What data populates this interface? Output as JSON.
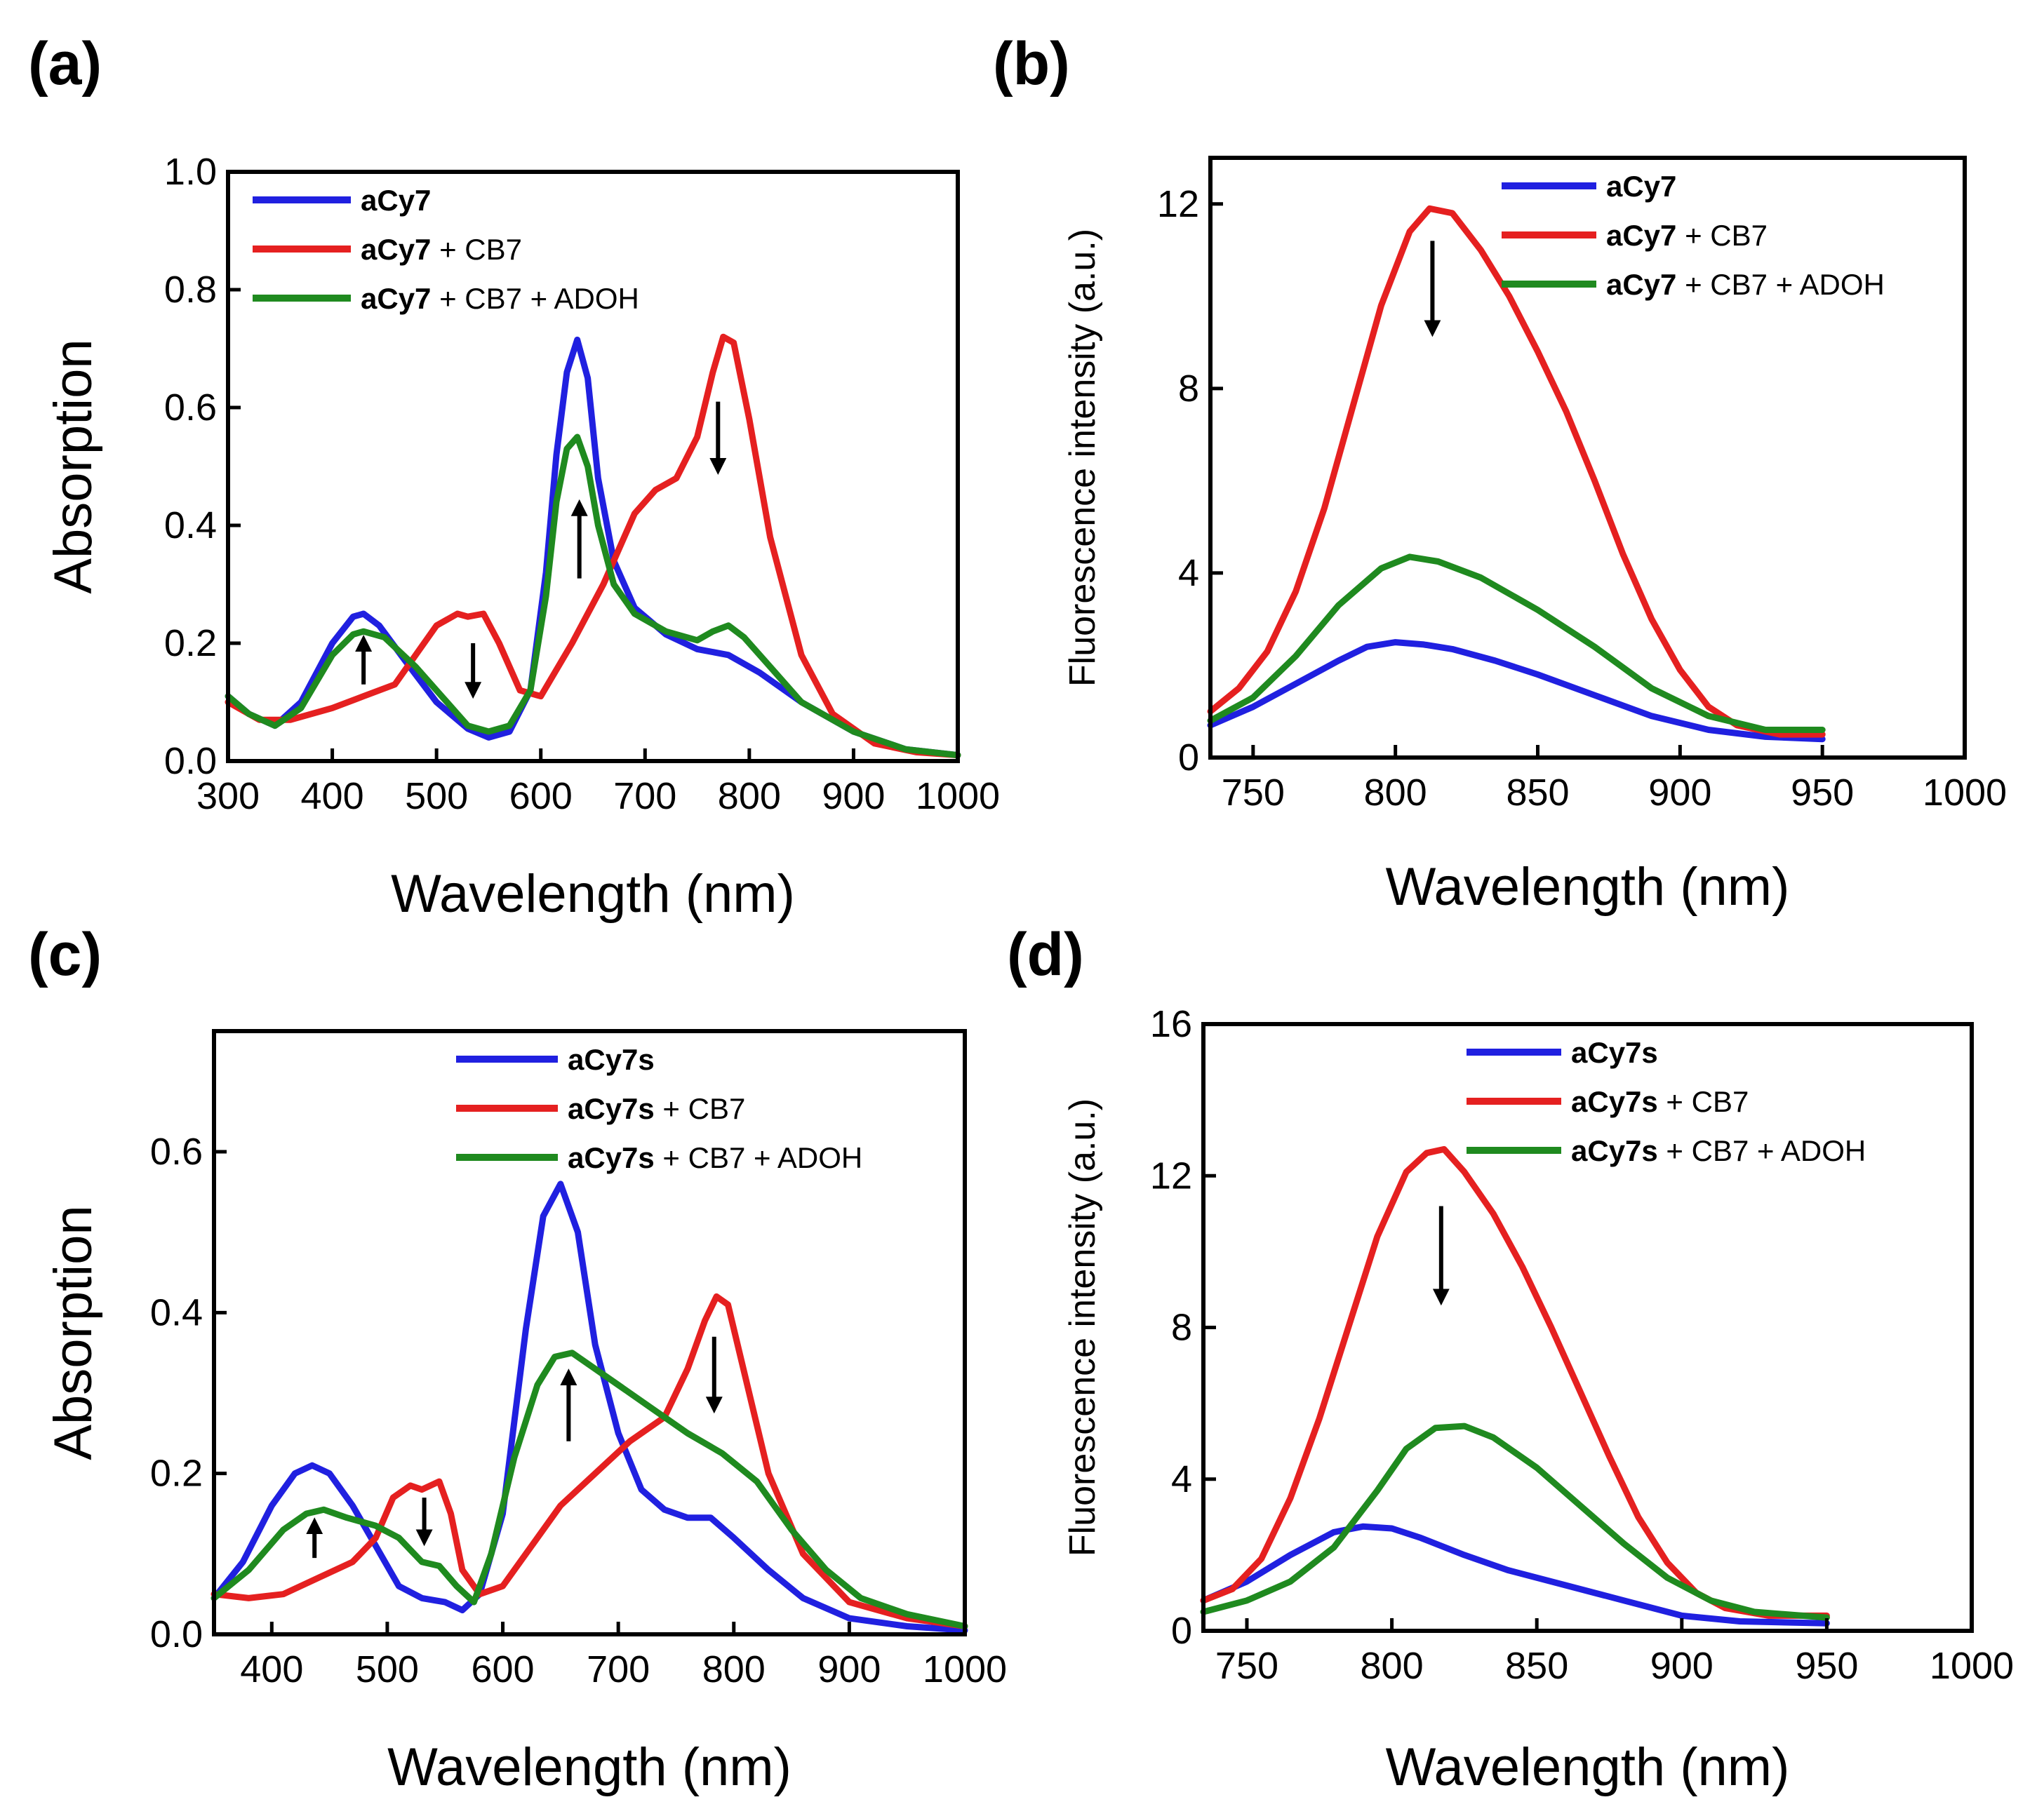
{
  "chart_data": [
    {
      "panel_label": "(a)",
      "type": "line",
      "xlabel": "Wavelength (nm)",
      "ylabel": "Absorption",
      "xlim": [
        300,
        1000
      ],
      "ylim": [
        0,
        1.0
      ],
      "xticks": [
        300,
        400,
        500,
        600,
        700,
        800,
        900,
        1000
      ],
      "yticks": [
        0.0,
        0.2,
        0.4,
        0.6,
        0.8,
        1.0
      ],
      "ytick_labels": [
        "0.0",
        "0.2",
        "0.4",
        "0.6",
        "0.8",
        "1.0"
      ],
      "legend_position": "top-left",
      "series": [
        {
          "name": "aCy7",
          "name_bold": "aCy7",
          "name_rest": "",
          "color": "#2020e0",
          "x": [
            300,
            320,
            345,
            370,
            400,
            420,
            430,
            445,
            470,
            500,
            530,
            550,
            570,
            590,
            605,
            615,
            625,
            635,
            645,
            655,
            670,
            690,
            720,
            750,
            780,
            810,
            850,
            900,
            950,
            1000
          ],
          "y": [
            0.11,
            0.08,
            0.06,
            0.1,
            0.2,
            0.245,
            0.25,
            0.23,
            0.17,
            0.1,
            0.055,
            0.04,
            0.05,
            0.12,
            0.32,
            0.52,
            0.66,
            0.715,
            0.65,
            0.48,
            0.34,
            0.26,
            0.215,
            0.19,
            0.18,
            0.15,
            0.1,
            0.05,
            0.02,
            0.01
          ]
        },
        {
          "name": "aCy7 + CB7",
          "name_bold": "aCy7",
          "name_rest": " + CB7",
          "color": "#e52020",
          "x": [
            300,
            330,
            360,
            400,
            430,
            460,
            480,
            500,
            520,
            530,
            545,
            560,
            580,
            600,
            630,
            660,
            690,
            710,
            730,
            750,
            765,
            775,
            785,
            800,
            820,
            850,
            880,
            920,
            960,
            1000
          ],
          "y": [
            0.1,
            0.07,
            0.07,
            0.09,
            0.11,
            0.13,
            0.18,
            0.23,
            0.25,
            0.245,
            0.25,
            0.2,
            0.12,
            0.11,
            0.2,
            0.3,
            0.42,
            0.46,
            0.48,
            0.55,
            0.66,
            0.72,
            0.71,
            0.58,
            0.38,
            0.18,
            0.08,
            0.03,
            0.015,
            0.01
          ]
        },
        {
          "name": "aCy7 + CB7 + ADOH",
          "name_bold": "aCy7",
          "name_rest": " + CB7 + ADOH",
          "color": "#1f8a1f",
          "x": [
            300,
            320,
            345,
            370,
            400,
            420,
            430,
            450,
            480,
            510,
            530,
            550,
            570,
            590,
            605,
            615,
            625,
            635,
            645,
            655,
            670,
            690,
            720,
            750,
            765,
            780,
            795,
            820,
            850,
            900,
            950,
            1000
          ],
          "y": [
            0.11,
            0.08,
            0.06,
            0.09,
            0.18,
            0.215,
            0.22,
            0.21,
            0.16,
            0.1,
            0.06,
            0.05,
            0.06,
            0.12,
            0.28,
            0.44,
            0.53,
            0.55,
            0.5,
            0.4,
            0.3,
            0.25,
            0.22,
            0.205,
            0.22,
            0.23,
            0.21,
            0.16,
            0.1,
            0.05,
            0.02,
            0.01
          ]
        }
      ],
      "arrows": [
        {
          "x": 430,
          "y_from": 0.13,
          "y_to": 0.2,
          "direction": "up"
        },
        {
          "x": 535,
          "y_from": 0.2,
          "y_to": 0.12,
          "direction": "down"
        },
        {
          "x": 637,
          "y_from": 0.31,
          "y_to": 0.43,
          "direction": "up"
        },
        {
          "x": 770,
          "y_from": 0.61,
          "y_to": 0.5,
          "direction": "down"
        }
      ]
    },
    {
      "panel_label": "(b)",
      "type": "line",
      "xlabel": "Wavelength (nm)",
      "ylabel": "Fluorescence intensity (a.u.)",
      "xlim": [
        735,
        1000
      ],
      "ylim": [
        0,
        13
      ],
      "xticks": [
        750,
        800,
        850,
        900,
        950,
        1000
      ],
      "yticks": [
        0,
        4,
        8,
        12
      ],
      "ytick_labels": [
        "0",
        "4",
        "8",
        "12"
      ],
      "legend_position": "top-right",
      "series": [
        {
          "name": "aCy7",
          "name_bold": "aCy7",
          "name_rest": "",
          "color": "#2020e0",
          "x": [
            735,
            750,
            765,
            780,
            790,
            800,
            810,
            820,
            835,
            850,
            870,
            890,
            910,
            930,
            950
          ],
          "y": [
            0.7,
            1.1,
            1.6,
            2.1,
            2.4,
            2.5,
            2.45,
            2.35,
            2.1,
            1.8,
            1.35,
            0.9,
            0.6,
            0.45,
            0.4
          ]
        },
        {
          "name": "aCy7 + CB7",
          "name_bold": "aCy7",
          "name_rest": " + CB7",
          "color": "#e52020",
          "x": [
            735,
            745,
            755,
            765,
            775,
            785,
            795,
            805,
            812,
            820,
            830,
            840,
            850,
            860,
            870,
            880,
            890,
            900,
            910,
            920,
            935,
            950
          ],
          "y": [
            1.0,
            1.5,
            2.3,
            3.6,
            5.4,
            7.6,
            9.8,
            11.4,
            11.9,
            11.8,
            11.0,
            10.0,
            8.8,
            7.5,
            6.0,
            4.4,
            3.0,
            1.9,
            1.1,
            0.7,
            0.5,
            0.5
          ]
        },
        {
          "name": "aCy7 + CB7 + ADOH",
          "name_bold": "aCy7",
          "name_rest": " + CB7 + ADOH",
          "color": "#1f8a1f",
          "x": [
            735,
            750,
            765,
            780,
            795,
            805,
            815,
            830,
            850,
            870,
            890,
            910,
            930,
            950
          ],
          "y": [
            0.8,
            1.3,
            2.2,
            3.3,
            4.1,
            4.35,
            4.25,
            3.9,
            3.2,
            2.4,
            1.5,
            0.9,
            0.6,
            0.6
          ]
        }
      ],
      "arrows": [
        {
          "x": 813,
          "y_from": 11.2,
          "y_to": 9.3,
          "direction": "down"
        }
      ]
    },
    {
      "panel_label": "(c)",
      "type": "line",
      "xlabel": "Wavelength (nm)",
      "ylabel": "Absorption",
      "xlim": [
        350,
        1000
      ],
      "ylim": [
        0,
        0.75
      ],
      "xticks": [
        400,
        500,
        600,
        700,
        800,
        900,
        1000
      ],
      "yticks": [
        0.0,
        0.2,
        0.4,
        0.6
      ],
      "ytick_labels": [
        "0.0",
        "0.2",
        "0.4",
        "0.6"
      ],
      "legend_position": "top-center",
      "series": [
        {
          "name": "aCy7s",
          "name_bold": "aCy7s",
          "name_rest": "",
          "color": "#2020e0",
          "x": [
            350,
            375,
            400,
            420,
            435,
            450,
            470,
            490,
            510,
            530,
            550,
            565,
            580,
            600,
            620,
            635,
            650,
            665,
            680,
            700,
            720,
            740,
            760,
            780,
            800,
            830,
            860,
            900,
            950,
            1000
          ],
          "y": [
            0.045,
            0.09,
            0.16,
            0.2,
            0.21,
            0.2,
            0.16,
            0.11,
            0.06,
            0.045,
            0.04,
            0.03,
            0.05,
            0.15,
            0.38,
            0.52,
            0.56,
            0.5,
            0.36,
            0.25,
            0.18,
            0.155,
            0.145,
            0.145,
            0.12,
            0.08,
            0.045,
            0.02,
            0.01,
            0.005
          ]
        },
        {
          "name": "aCy7s + CB7",
          "name_bold": "aCy7s",
          "name_rest": " + CB7",
          "color": "#e52020",
          "x": [
            350,
            380,
            410,
            440,
            470,
            490,
            505,
            520,
            530,
            545,
            555,
            565,
            580,
            600,
            620,
            650,
            680,
            710,
            740,
            760,
            775,
            785,
            795,
            810,
            830,
            860,
            900,
            950,
            1000
          ],
          "y": [
            0.05,
            0.045,
            0.05,
            0.07,
            0.09,
            0.12,
            0.17,
            0.185,
            0.18,
            0.19,
            0.15,
            0.08,
            0.05,
            0.06,
            0.1,
            0.16,
            0.2,
            0.24,
            0.27,
            0.33,
            0.39,
            0.42,
            0.41,
            0.32,
            0.2,
            0.1,
            0.04,
            0.02,
            0.01
          ]
        },
        {
          "name": "aCy7s + CB7 + ADOH",
          "name_bold": "aCy7s",
          "name_rest": " + CB7 + ADOH",
          "color": "#1f8a1f",
          "x": [
            350,
            380,
            410,
            430,
            445,
            465,
            490,
            510,
            530,
            545,
            560,
            575,
            590,
            610,
            630,
            645,
            660,
            680,
            700,
            730,
            760,
            790,
            820,
            850,
            880,
            910,
            950,
            1000
          ],
          "y": [
            0.045,
            0.08,
            0.13,
            0.15,
            0.155,
            0.145,
            0.135,
            0.12,
            0.09,
            0.085,
            0.06,
            0.04,
            0.1,
            0.22,
            0.31,
            0.345,
            0.35,
            0.33,
            0.31,
            0.28,
            0.25,
            0.225,
            0.19,
            0.13,
            0.08,
            0.045,
            0.025,
            0.01
          ]
        }
      ],
      "arrows": [
        {
          "x": 437,
          "y_from": 0.095,
          "y_to": 0.135,
          "direction": "up"
        },
        {
          "x": 532,
          "y_from": 0.17,
          "y_to": 0.12,
          "direction": "down"
        },
        {
          "x": 657,
          "y_from": 0.24,
          "y_to": 0.32,
          "direction": "up"
        },
        {
          "x": 783,
          "y_from": 0.37,
          "y_to": 0.285,
          "direction": "down"
        }
      ]
    },
    {
      "panel_label": "(d)",
      "type": "line",
      "xlabel": "Wavelength (nm)",
      "ylabel": "Fluorescence intensity (a.u.)",
      "xlim": [
        735,
        1000
      ],
      "ylim": [
        0,
        16
      ],
      "xticks": [
        750,
        800,
        850,
        900,
        950,
        1000
      ],
      "yticks": [
        0,
        4,
        8,
        12,
        16
      ],
      "ytick_labels": [
        "0",
        "4",
        "8",
        "12",
        "16"
      ],
      "legend_position": "top-right",
      "series": [
        {
          "name": "aCy7s",
          "name_bold": "aCy7s",
          "name_rest": "",
          "color": "#2020e0",
          "x": [
            735,
            750,
            765,
            780,
            790,
            800,
            810,
            825,
            840,
            860,
            880,
            900,
            920,
            950
          ],
          "y": [
            0.8,
            1.3,
            2.0,
            2.6,
            2.75,
            2.7,
            2.45,
            2.0,
            1.6,
            1.2,
            0.8,
            0.4,
            0.25,
            0.2
          ]
        },
        {
          "name": "aCy7s + CB7",
          "name_bold": "aCy7s",
          "name_rest": " + CB7",
          "color": "#e52020",
          "x": [
            735,
            745,
            755,
            765,
            775,
            785,
            795,
            805,
            812,
            818,
            825,
            835,
            845,
            855,
            865,
            875,
            885,
            895,
            905,
            915,
            930,
            950
          ],
          "y": [
            0.8,
            1.1,
            1.9,
            3.5,
            5.6,
            8.0,
            10.4,
            12.1,
            12.6,
            12.7,
            12.1,
            11.0,
            9.6,
            8.0,
            6.3,
            4.6,
            3.0,
            1.8,
            1.0,
            0.6,
            0.4,
            0.4
          ]
        },
        {
          "name": "aCy7s + CB7 + ADOH",
          "name_bold": "aCy7s",
          "name_rest": " + CB7 + ADOH",
          "color": "#1f8a1f",
          "x": [
            735,
            750,
            765,
            780,
            795,
            805,
            815,
            825,
            835,
            850,
            865,
            880,
            895,
            910,
            925,
            950
          ],
          "y": [
            0.5,
            0.8,
            1.3,
            2.2,
            3.7,
            4.8,
            5.35,
            5.4,
            5.1,
            4.3,
            3.3,
            2.3,
            1.4,
            0.8,
            0.5,
            0.35
          ]
        }
      ],
      "arrows": [
        {
          "x": 817,
          "y_from": 11.2,
          "y_to": 8.8,
          "direction": "down"
        }
      ]
    }
  ]
}
